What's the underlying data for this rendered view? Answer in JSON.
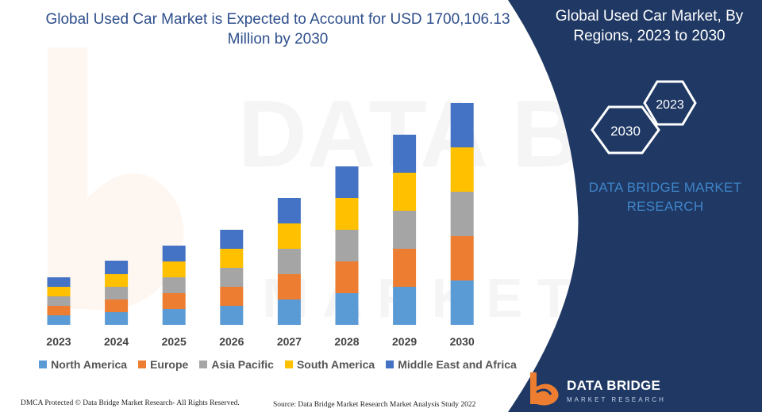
{
  "chart_data": {
    "type": "bar",
    "stacked": true,
    "title": "Global Used Car Market is Expected to Account for USD 1700,106.13 Million by 2030",
    "categories": [
      "2023",
      "2024",
      "2025",
      "2026",
      "2027",
      "2028",
      "2029",
      "2030"
    ],
    "series": [
      {
        "name": "North America",
        "color": "#5b9bd5",
        "values": [
          12,
          16,
          20,
          24,
          32,
          40,
          48,
          56
        ]
      },
      {
        "name": "Europe",
        "color": "#ed7d31",
        "values": [
          12,
          16,
          20,
          24,
          32,
          40,
          48,
          56
        ]
      },
      {
        "name": "Asia Pacific",
        "color": "#a5a5a5",
        "values": [
          12,
          16,
          20,
          24,
          32,
          40,
          48,
          56
        ]
      },
      {
        "name": "South America",
        "color": "#ffc000",
        "values": [
          12,
          16,
          20,
          24,
          32,
          40,
          48,
          56
        ]
      },
      {
        "name": "Middle East and Africa",
        "color": "#4472c4",
        "values": [
          12,
          17,
          20,
          24,
          32,
          40,
          48,
          56
        ]
      }
    ],
    "xlabel": "",
    "ylabel": "",
    "ylim": [
      0,
      290
    ],
    "grid": false,
    "legend_position": "bottom"
  },
  "panel": {
    "title": "Global Used Car Market, By Regions, 2023 to 2030",
    "hex_left": "2030",
    "hex_right": "2023",
    "brand": "DATA BRIDGE MARKET RESEARCH",
    "background_color": "#1f3864"
  },
  "footer": {
    "left": "DMCA Protected © Data Bridge Market Research- All Rights Reserved.",
    "right": "Source: Data Bridge Market Research Market Analysis Study 2022"
  },
  "logo": {
    "name": "DATA BRIDGE",
    "tagline": "MARKET RESEARCH"
  },
  "watermark": {
    "text": "DATA BRIDGE",
    "subtext": "MARKET RESEARCH"
  }
}
